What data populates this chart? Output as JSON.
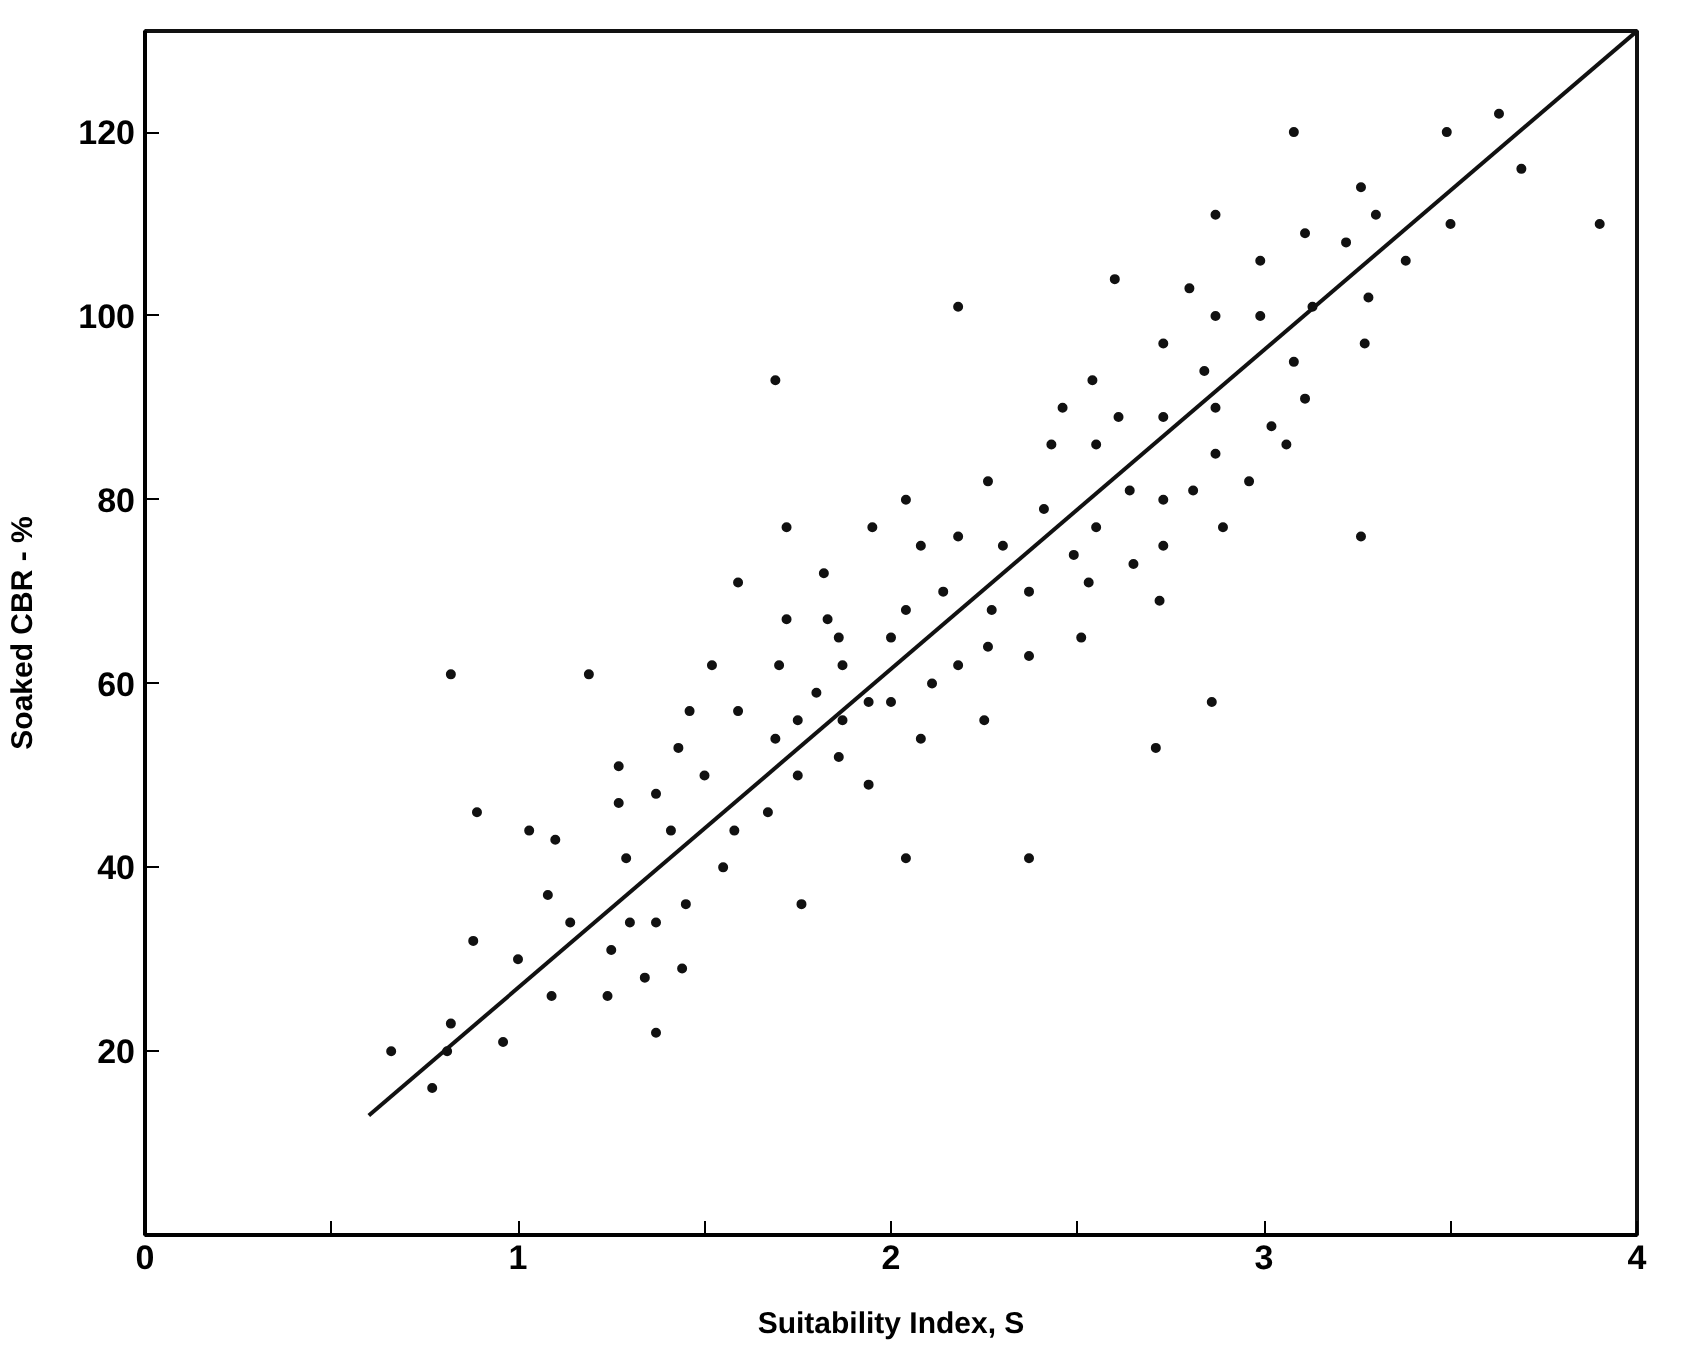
{
  "chart_data": {
    "type": "scatter",
    "xlabel": "Suitability Index, S",
    "ylabel": "Soaked CBR - %",
    "xlim": [
      0,
      4
    ],
    "ylim": [
      0,
      131
    ],
    "xticks": [
      0,
      {
        "value": 0.5,
        "label": null
      },
      1,
      {
        "value": 1.5,
        "label": null
      },
      2,
      {
        "value": 2.5,
        "label": null
      },
      3,
      {
        "value": 3.5,
        "label": null
      },
      4
    ],
    "yticks": [
      20,
      40,
      60,
      80,
      100,
      120
    ],
    "grid": false,
    "marker": "circle",
    "series": [
      {
        "color": "#111111",
        "x": [
          0.66,
          0.77,
          0.82,
          0.81,
          0.82,
          0.89,
          0.88,
          0.96,
          1.0,
          1.03,
          1.08,
          1.09,
          1.1,
          1.14,
          1.19,
          1.24,
          1.25,
          1.27,
          1.27,
          1.29,
          1.3,
          1.34,
          1.37,
          1.37,
          1.37,
          1.41,
          1.43,
          1.44,
          1.45,
          1.46,
          1.5,
          1.52,
          1.55,
          1.58,
          1.59,
          1.67,
          1.69,
          1.7,
          1.75,
          1.75,
          1.76,
          1.8,
          1.87,
          1.86,
          1.87,
          1.69,
          1.72,
          1.59,
          1.82,
          1.72,
          1.83,
          1.86,
          3.63,
          3.08,
          3.49,
          3.69,
          3.26,
          3.3,
          2.87,
          3.5,
          3.9,
          3.11,
          3.22,
          3.38,
          2.99,
          2.6,
          2.8,
          2.18,
          2.87,
          2.99,
          3.28,
          3.13,
          2.73,
          3.27,
          2.84,
          3.08,
          3.11,
          2.54,
          2.46,
          2.61,
          2.73,
          2.87,
          3.02,
          3.06,
          2.43,
          2.55,
          2.87,
          2.26,
          2.81,
          2.96,
          2.64,
          2.73,
          2.41,
          2.04,
          1.95,
          2.08,
          2.18,
          2.3,
          2.55,
          2.89,
          3.26,
          2.73,
          2.49,
          2.65,
          2.14,
          2.53,
          2.04,
          2.27,
          2.37,
          2.72,
          2.0,
          2.26,
          2.37,
          2.51,
          2.18,
          2.11,
          2.0,
          1.94,
          2.86,
          2.25,
          2.08,
          1.94,
          2.04,
          2.37,
          2.71
        ],
        "values": [
          20,
          16,
          23,
          20,
          61,
          46,
          32,
          21,
          30,
          44,
          37,
          26,
          43,
          34,
          61,
          26,
          31,
          47,
          51,
          41,
          34,
          28,
          48,
          22,
          34,
          44,
          53,
          29,
          36,
          57,
          50,
          62,
          40,
          44,
          57,
          46,
          54,
          62,
          56,
          50,
          36,
          59,
          56,
          52,
          62,
          93,
          77,
          71,
          72,
          67,
          67,
          65,
          122,
          120,
          120,
          116,
          114,
          111,
          111,
          110,
          110,
          109,
          108,
          106,
          106,
          104,
          103,
          101,
          100,
          100,
          102,
          101,
          97,
          97,
          94,
          95,
          91,
          93,
          90,
          89,
          89,
          90,
          88,
          86,
          86,
          86,
          85,
          82,
          81,
          82,
          81,
          80,
          79,
          80,
          77,
          75,
          76,
          75,
          77,
          77,
          76,
          75,
          74,
          73,
          70,
          71,
          68,
          68,
          70,
          69,
          65,
          64,
          63,
          65,
          62,
          60,
          58,
          58,
          58,
          56,
          54,
          49,
          41,
          41,
          53
        ]
      },
      {
        "type": "line",
        "color": "#111111",
        "x": [
          0.6,
          4
        ],
        "values": [
          13,
          131
        ],
        "marker": "none",
        "line_style": "solid"
      }
    ]
  }
}
